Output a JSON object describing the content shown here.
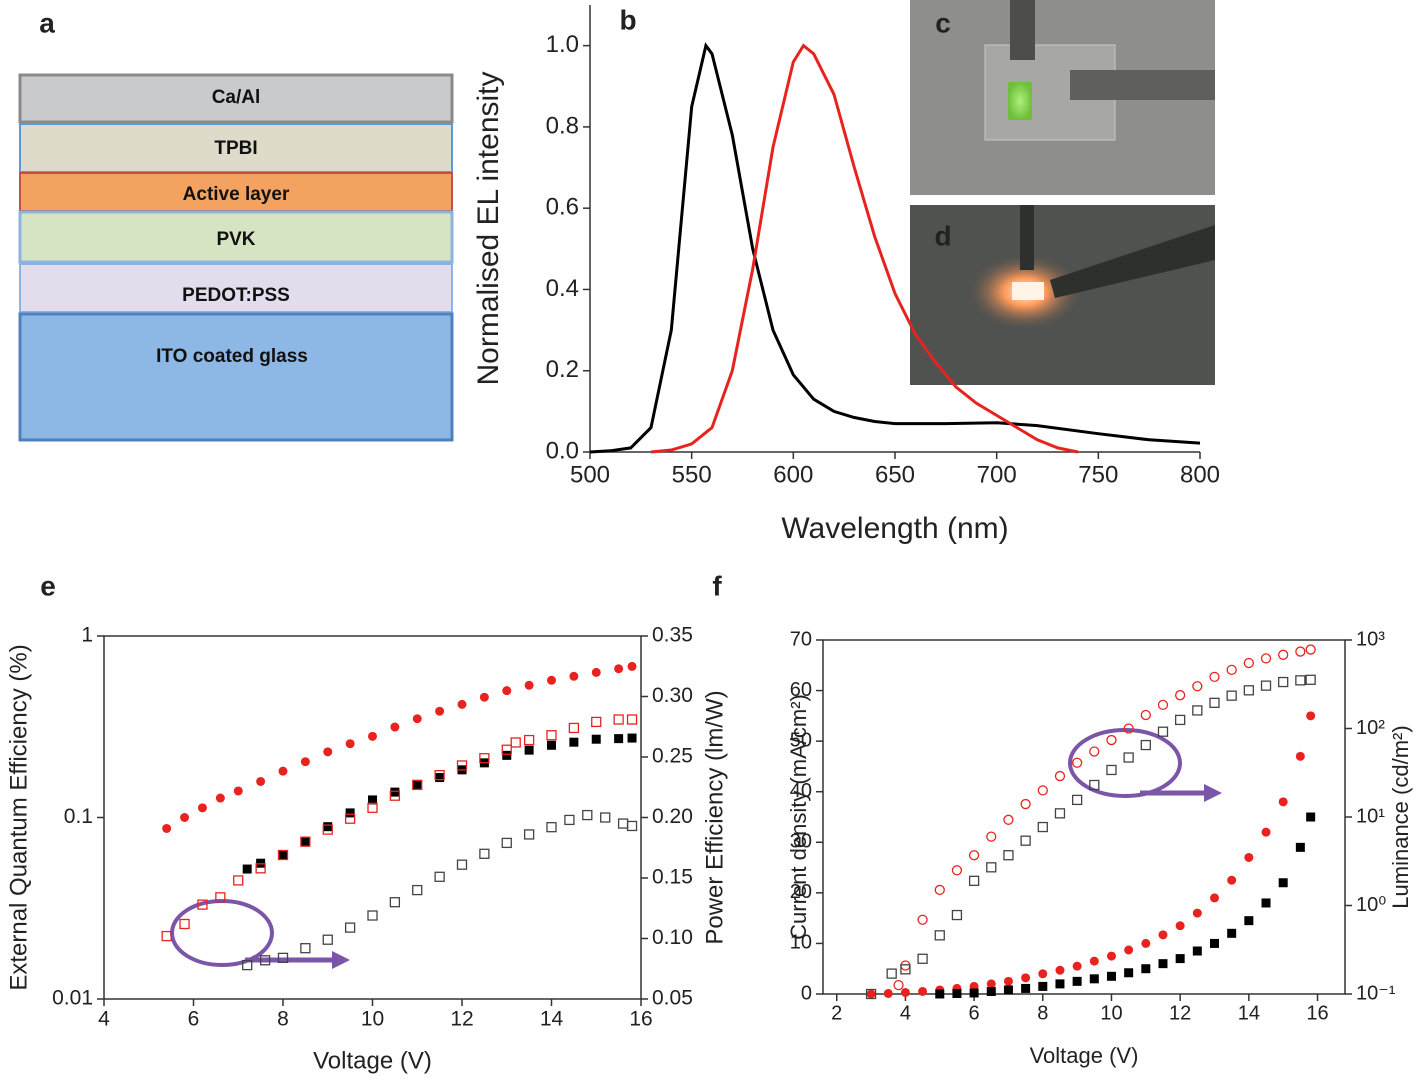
{
  "device_stack": {
    "label": "a",
    "layers": [
      "Ca/Al",
      "TPBI",
      "Active layer",
      "PVK",
      "PEDOT:PSS",
      "ITO coated glass"
    ]
  },
  "photos": [
    {
      "label": "c"
    },
    {
      "label": "d"
    }
  ],
  "chart_data": [
    {
      "type": "line",
      "label": "b",
      "x_label": "Wavelength (nm)",
      "y_label": "Normalised EL intensity",
      "xlim": [
        500,
        800
      ],
      "xticks": [
        500,
        550,
        600,
        650,
        700,
        750,
        800
      ],
      "ylim": [
        0,
        1.1
      ],
      "yticks": [
        {
          "value": 0,
          "label": "0.0"
        },
        0.2,
        0.4,
        0.6,
        0.8,
        {
          "value": 1,
          "label": "1.0"
        }
      ],
      "series": [
        {
          "color": "#000000",
          "x": [
            500,
            510,
            520,
            530,
            540,
            550,
            557,
            560,
            570,
            580,
            590,
            600,
            610,
            620,
            630,
            640,
            650,
            675,
            700,
            720,
            750,
            775,
            800
          ],
          "values": [
            0,
            0.003,
            0.01,
            0.06,
            0.3,
            0.85,
            1.0,
            0.98,
            0.78,
            0.5,
            0.3,
            0.19,
            0.13,
            0.1,
            0.085,
            0.075,
            0.07,
            0.07,
            0.072,
            0.065,
            0.045,
            0.03,
            0.022
          ]
        },
        {
          "color": "#e8231f",
          "x": [
            530,
            540,
            550,
            560,
            570,
            580,
            590,
            600,
            605,
            610,
            620,
            630,
            640,
            650,
            660,
            670,
            680,
            690,
            700,
            710,
            720,
            730,
            740
          ],
          "values": [
            0,
            0.005,
            0.02,
            0.06,
            0.2,
            0.45,
            0.75,
            0.96,
            1.0,
            0.98,
            0.88,
            0.7,
            0.53,
            0.39,
            0.29,
            0.22,
            0.16,
            0.12,
            0.09,
            0.06,
            0.03,
            0.01,
            0
          ]
        }
      ]
    },
    {
      "type": "scatter",
      "label": "e",
      "x_label": "Voltage (V)",
      "y_label": "External Quantum Efficiency (%)",
      "y2_label": "Power Efficiency (lm/W)",
      "xlim": [
        4,
        16
      ],
      "xticks": [
        4,
        6,
        8,
        10,
        12,
        14,
        16
      ],
      "ylim": [
        0.01,
        1
      ],
      "ylog": true,
      "yticks": [
        0.01,
        0.1,
        1
      ],
      "y2lim": [
        0.05,
        0.35
      ],
      "y2ticks": [
        0.05,
        {
          "value": 0.1,
          "label": "0.10"
        },
        0.15,
        {
          "value": 0.2,
          "label": "0.20"
        },
        0.25,
        {
          "value": 0.3,
          "label": "0.30"
        },
        0.35
      ],
      "series": [
        {
          "color": "#e8231f",
          "marker": "circle",
          "filled": true,
          "x": [
            5.4,
            5.8,
            6.2,
            6.6,
            7,
            7.5,
            8,
            8.5,
            9,
            9.5,
            10,
            10.5,
            11,
            11.5,
            12,
            12.5,
            13,
            13.5,
            14,
            14.5,
            15,
            15.5,
            15.8
          ],
          "values": [
            0.087,
            0.1,
            0.113,
            0.128,
            0.14,
            0.158,
            0.18,
            0.203,
            0.23,
            0.255,
            0.28,
            0.315,
            0.35,
            0.385,
            0.42,
            0.46,
            0.5,
            0.535,
            0.57,
            0.6,
            0.63,
            0.66,
            0.68
          ]
        },
        {
          "color": "#000000",
          "marker": "square",
          "filled": true,
          "x": [
            7.2,
            7.5,
            8,
            8.5,
            9,
            9.5,
            10,
            10.5,
            11,
            11.5,
            12,
            12.5,
            13,
            13.5,
            14,
            14.5,
            15,
            15.5,
            15.8
          ],
          "values": [
            0.052,
            0.056,
            0.062,
            0.074,
            0.089,
            0.106,
            0.125,
            0.138,
            0.15,
            0.166,
            0.183,
            0.2,
            0.22,
            0.235,
            0.25,
            0.26,
            0.27,
            0.272,
            0.274
          ]
        },
        {
          "color": "#e8231f",
          "marker": "square",
          "filled": false,
          "axis": "y2",
          "x": [
            5.4,
            5.8,
            6.2,
            6.6,
            7,
            7.5,
            8,
            8.5,
            9,
            9.5,
            10,
            10.5,
            11,
            11.5,
            12,
            12.5,
            13,
            13.2,
            13.5,
            14,
            14.5,
            15,
            15.5,
            15.8
          ],
          "values": [
            0.102,
            0.112,
            0.128,
            0.134,
            0.148,
            0.158,
            0.169,
            0.18,
            0.19,
            0.199,
            0.208,
            0.218,
            0.227,
            0.235,
            0.243,
            0.249,
            0.256,
            0.262,
            0.264,
            0.268,
            0.274,
            0.279,
            0.281,
            0.281
          ]
        },
        {
          "color": "#444444",
          "marker": "square",
          "filled": false,
          "axis": "y2",
          "x": [
            7.2,
            7.6,
            8,
            8.5,
            9,
            9.5,
            10,
            10.5,
            11,
            11.5,
            12,
            12.5,
            13,
            13.5,
            14,
            14.4,
            14.8,
            15.2,
            15.6,
            15.8
          ],
          "values": [
            0.078,
            0.082,
            0.084,
            0.092,
            0.099,
            0.109,
            0.119,
            0.13,
            0.14,
            0.151,
            0.161,
            0.17,
            0.179,
            0.186,
            0.192,
            0.198,
            0.202,
            0.2,
            0.195,
            0.193
          ]
        }
      ]
    },
    {
      "type": "scatter",
      "label": "f",
      "x_label": "Voltage (V)",
      "y_label": "Current density (mA/cm²)",
      "y2_label": "Luminance (cd/m²)",
      "xlim": [
        1.6,
        16.8
      ],
      "xticks": [
        2,
        4,
        6,
        8,
        10,
        12,
        14,
        16
      ],
      "ylim": [
        0,
        70
      ],
      "yticks": [
        0,
        10,
        20,
        30,
        40,
        50,
        60,
        70
      ],
      "y2lim": [
        0.1,
        1000
      ],
      "y2log": true,
      "y2ticks": [
        {
          "value": 0.1,
          "label": "10⁻¹"
        },
        {
          "value": 1,
          "label": "10⁰"
        },
        {
          "value": 10,
          "label": "10¹"
        },
        {
          "value": 100,
          "label": "10²"
        },
        {
          "value": 1000,
          "label": "10³"
        }
      ],
      "series": [
        {
          "color": "#e8231f",
          "marker": "circle",
          "filled": true,
          "x": [
            3,
            3.5,
            4,
            4.5,
            5,
            5.5,
            6,
            6.5,
            7,
            7.5,
            8,
            8.5,
            9,
            9.5,
            10,
            10.5,
            11,
            11.5,
            12,
            12.5,
            13,
            13.5,
            14,
            14.5,
            15,
            15.5,
            15.8
          ],
          "values": [
            0,
            0.1,
            0.3,
            0.5,
            0.8,
            1.1,
            1.5,
            2,
            2.5,
            3.2,
            4,
            4.7,
            5.5,
            6.5,
            7.5,
            8.7,
            10,
            11.7,
            13.5,
            16,
            19,
            22.5,
            27,
            32,
            38,
            47,
            55
          ]
        },
        {
          "color": "#000000",
          "marker": "square",
          "filled": true,
          "x": [
            5,
            5.5,
            6,
            6.5,
            7,
            7.5,
            8,
            8.5,
            9,
            9.5,
            10,
            10.5,
            11,
            11.5,
            12,
            12.5,
            13,
            13.5,
            14,
            14.5,
            15,
            15.5,
            15.8
          ],
          "values": [
            0,
            0.1,
            0.2,
            0.5,
            0.8,
            1.1,
            1.5,
            2,
            2.5,
            3,
            3.5,
            4.2,
            5,
            6,
            7,
            8.5,
            10,
            12,
            14.5,
            18,
            22,
            29,
            35
          ]
        },
        {
          "color": "#e8231f",
          "marker": "circle",
          "filled": false,
          "axis": "y2",
          "x": [
            3.8,
            4,
            4.5,
            5,
            5.5,
            6,
            6.5,
            7,
            7.5,
            8,
            8.5,
            9,
            9.5,
            10,
            10.5,
            11,
            11.5,
            12,
            12.5,
            13,
            13.5,
            14,
            14.5,
            15,
            15.5,
            15.8
          ],
          "values": [
            0.126,
            0.21,
            0.69,
            1.5,
            2.5,
            3.7,
            6,
            9.3,
            14,
            20,
            29,
            41,
            55,
            74,
            100,
            142,
            185,
            238,
            300,
            383,
            460,
            550,
            620,
            680,
            740,
            780
          ]
        },
        {
          "color": "#444444",
          "marker": "square",
          "filled": false,
          "axis": "y2",
          "x": [
            3,
            3.6,
            4,
            4.5,
            5,
            5.5,
            6,
            6.5,
            7,
            7.5,
            8,
            8.5,
            9,
            9.5,
            10,
            10.5,
            11,
            11.5,
            12,
            12.5,
            13,
            13.5,
            14,
            14.5,
            15,
            15.5,
            15.8
          ],
          "values": [
            0.1,
            0.17,
            0.19,
            0.25,
            0.46,
            0.78,
            1.9,
            2.7,
            3.7,
            5.4,
            7.7,
            11,
            15.6,
            23,
            34,
            47,
            65,
            92,
            125,
            160,
            195,
            235,
            270,
            305,
            335,
            350,
            355
          ]
        }
      ]
    }
  ]
}
